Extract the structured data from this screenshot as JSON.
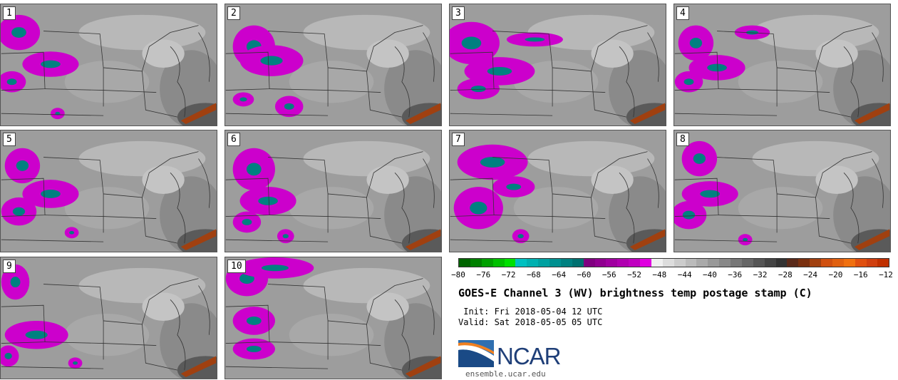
{
  "panels": [
    "1",
    "2",
    "3",
    "4",
    "5",
    "6",
    "7",
    "8",
    "9",
    "10"
  ],
  "colorbar": {
    "colors": [
      "#006400",
      "#008000",
      "#00a000",
      "#00c000",
      "#00e000",
      "#00c0c0",
      "#00b0b0",
      "#00a0a0",
      "#009090",
      "#008080",
      "#007070",
      "#800080",
      "#900090",
      "#a000a0",
      "#b000b0",
      "#c000c0",
      "#e000e0",
      "#f0f0f0",
      "#dddddd",
      "#cccccc",
      "#bbbbbb",
      "#aaaaaa",
      "#999999",
      "#888888",
      "#777777",
      "#666666",
      "#555555",
      "#444444",
      "#333333",
      "#5a2a1a",
      "#7a3010",
      "#a04010",
      "#d05010",
      "#e06010",
      "#f07010",
      "#e05010",
      "#d04010",
      "#c03000"
    ],
    "ticks": [
      "−80",
      "−76",
      "−72",
      "−68",
      "−64",
      "−60",
      "−56",
      "−52",
      "−48",
      "−44",
      "−40",
      "−36",
      "−32",
      "−28",
      "−24",
      "−20",
      "−16",
      "−12"
    ]
  },
  "title": "GOES-E Channel 3 (WV) brightness temp postage stamp (C)",
  "init": " Init: Fri 2018-05-04 12 UTC",
  "valid": "Valid: Sat 2018-05-05 05 UTC",
  "logo": {
    "name": "NCAR",
    "url": "ensemble.ucar.edu"
  }
}
